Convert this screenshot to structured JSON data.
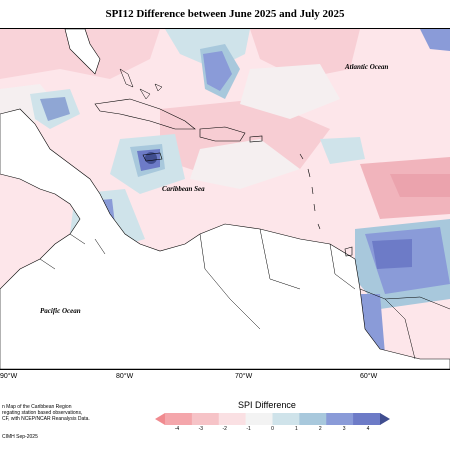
{
  "title": "SPI12 Difference between June 2025 and July 2025",
  "labels": {
    "atlantic": "Atlantic Ocean",
    "caribbean": "Caribbean Sea",
    "pacific": "Pacific Ocean"
  },
  "longitude_ticks": [
    "90°W",
    "80°W",
    "70°W",
    "60°W"
  ],
  "notes": {
    "line1": "n Map of the Caribbean Region",
    "line2": "regating station based observations,",
    "line3": "CF, with NCEP/NCAR Reanalysis Data.",
    "credit": "CIMH Sep-2025"
  },
  "legend": {
    "title": "SPI Difference",
    "ticks": [
      "-4",
      "-3",
      "-2",
      "-1",
      "0",
      "1",
      "2",
      "3",
      "4"
    ],
    "colors": [
      "#f08a8f",
      "#f4a6ab",
      "#f6c3c7",
      "#fae0e3",
      "#f3f3f3",
      "#cfe3ea",
      "#a8c8dc",
      "#8a9bd8",
      "#6d7bc7",
      "#404d8f"
    ]
  }
}
